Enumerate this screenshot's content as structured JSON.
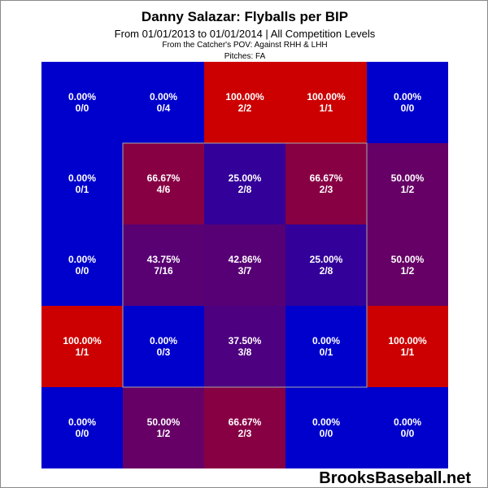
{
  "title": "Danny Salazar: Flyballs per BIP",
  "subtitle": "From 01/01/2013 to 01/01/2014 | All Competition Levels",
  "pov_line": "From the Catcher's POV:  Against RHH & LHH",
  "pitches_line": "Pitches:  FA",
  "brand": "BrooksBaseball.net",
  "colors": {
    "low": "#0000cc",
    "high": "#cc0000",
    "strike_zone_outline": "#a8a8a8",
    "cell_text": "#ffffff"
  },
  "chart_data": {
    "type": "heatmap",
    "rows": 5,
    "cols": 5,
    "strike_zone": {
      "row_start": 1,
      "row_end": 3,
      "col_start": 1,
      "col_end": 3
    },
    "cells": [
      [
        {
          "pct": "0.00%",
          "ratio": "0/0",
          "value": 0.0
        },
        {
          "pct": "0.00%",
          "ratio": "0/4",
          "value": 0.0
        },
        {
          "pct": "100.00%",
          "ratio": "2/2",
          "value": 1.0
        },
        {
          "pct": "100.00%",
          "ratio": "1/1",
          "value": 1.0
        },
        {
          "pct": "0.00%",
          "ratio": "0/0",
          "value": 0.0
        }
      ],
      [
        {
          "pct": "0.00%",
          "ratio": "0/1",
          "value": 0.0
        },
        {
          "pct": "66.67%",
          "ratio": "4/6",
          "value": 0.6667
        },
        {
          "pct": "25.00%",
          "ratio": "2/8",
          "value": 0.25
        },
        {
          "pct": "66.67%",
          "ratio": "2/3",
          "value": 0.6667
        },
        {
          "pct": "50.00%",
          "ratio": "1/2",
          "value": 0.5
        }
      ],
      [
        {
          "pct": "0.00%",
          "ratio": "0/0",
          "value": 0.0
        },
        {
          "pct": "43.75%",
          "ratio": "7/16",
          "value": 0.4375
        },
        {
          "pct": "42.86%",
          "ratio": "3/7",
          "value": 0.4286
        },
        {
          "pct": "25.00%",
          "ratio": "2/8",
          "value": 0.25
        },
        {
          "pct": "50.00%",
          "ratio": "1/2",
          "value": 0.5
        }
      ],
      [
        {
          "pct": "100.00%",
          "ratio": "1/1",
          "value": 1.0
        },
        {
          "pct": "0.00%",
          "ratio": "0/3",
          "value": 0.0
        },
        {
          "pct": "37.50%",
          "ratio": "3/8",
          "value": 0.375
        },
        {
          "pct": "0.00%",
          "ratio": "0/1",
          "value": 0.0
        },
        {
          "pct": "100.00%",
          "ratio": "1/1",
          "value": 1.0
        }
      ],
      [
        {
          "pct": "0.00%",
          "ratio": "0/0",
          "value": 0.0
        },
        {
          "pct": "50.00%",
          "ratio": "1/2",
          "value": 0.5
        },
        {
          "pct": "66.67%",
          "ratio": "2/3",
          "value": 0.6667
        },
        {
          "pct": "0.00%",
          "ratio": "0/0",
          "value": 0.0
        },
        {
          "pct": "0.00%",
          "ratio": "0/0",
          "value": 0.0
        }
      ]
    ]
  }
}
